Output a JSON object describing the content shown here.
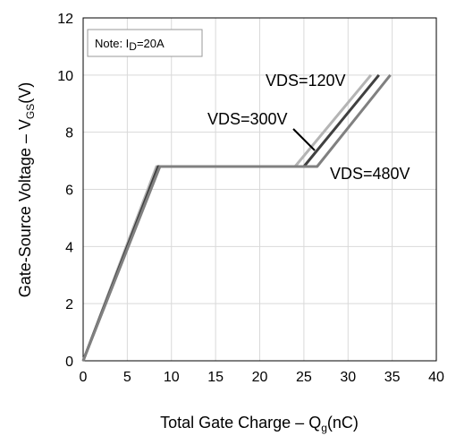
{
  "chart_data": {
    "type": "line",
    "xlabel": "Total Gate Charge  –  Qg(nC)",
    "xlabel_parts": [
      "Total Gate Charge  –  Q",
      "g",
      "(nC)"
    ],
    "ylabel": "Gate-Source Voltage  –  VGS(V)",
    "ylabel_parts": [
      "Gate-Source Voltage  –  V",
      "GS",
      "(V)"
    ],
    "xlim": [
      0,
      40
    ],
    "ylim": [
      0,
      12
    ],
    "xticks": [
      0,
      5,
      10,
      15,
      20,
      25,
      30,
      35,
      40
    ],
    "yticks": [
      0,
      2,
      4,
      6,
      8,
      10,
      12
    ],
    "grid": true,
    "note": "Note: ID=20A",
    "note_parts": [
      "Note: I",
      "D",
      "=20A"
    ],
    "series": [
      {
        "name": "VDS=120V",
        "color": "#b4b4b4",
        "x": [
          0,
          8.3,
          24.0,
          32.6
        ],
        "y": [
          0,
          6.8,
          6.8,
          10.0
        ]
      },
      {
        "name": "VDS=300V",
        "color": "#404040",
        "x": [
          0,
          8.5,
          25.0,
          33.5
        ],
        "y": [
          0,
          6.8,
          6.8,
          10.0
        ]
      },
      {
        "name": "VDS=480V",
        "color": "#808080",
        "x": [
          0,
          8.7,
          26.5,
          34.8
        ],
        "y": [
          0,
          6.8,
          6.8,
          10.0
        ]
      }
    ],
    "annotations": [
      {
        "text": "VDS=120V",
        "series": 0
      },
      {
        "text": "VDS=300V",
        "series": 1
      },
      {
        "text": "VDS=480V",
        "series": 2
      }
    ]
  }
}
